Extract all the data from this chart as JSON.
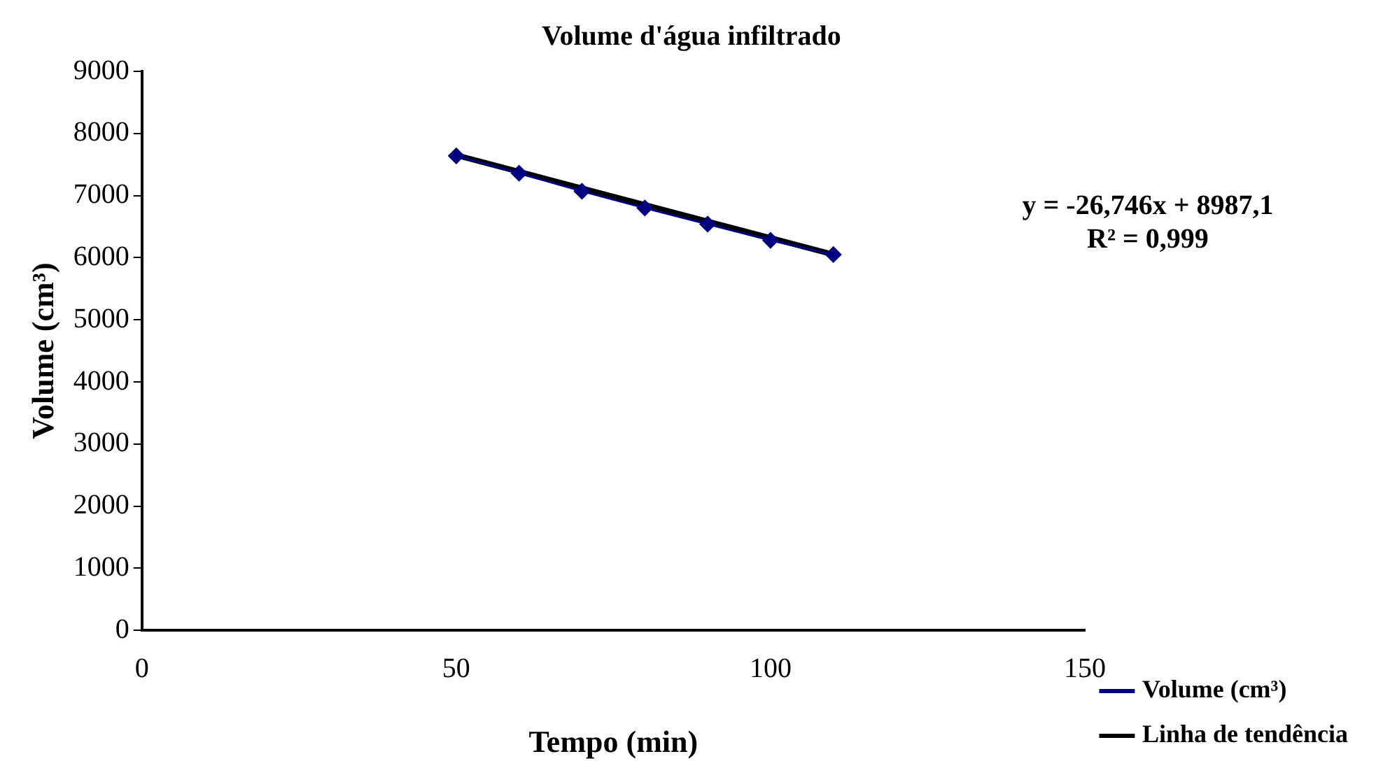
{
  "chart_data": {
    "type": "line",
    "title": "Volume d'água infiltrado",
    "xlabel": "Tempo (min)",
    "ylabel": "Volume (cm³)",
    "xlim": [
      0,
      150
    ],
    "xticks": [
      0,
      50,
      100,
      150
    ],
    "ylim": [
      0,
      9000
    ],
    "yticks": [
      0,
      1000,
      2000,
      3000,
      4000,
      5000,
      6000,
      7000,
      8000,
      9000
    ],
    "grid": false,
    "legend": "bottom right",
    "annotations": [
      "y = -26,746x + 8987,1",
      "R² = 0,999"
    ],
    "series": [
      {
        "name": "Volume (cm³)",
        "color": "#000080",
        "marker": "diamond",
        "x": [
          50,
          60,
          70,
          80,
          90,
          100,
          110
        ],
        "values": [
          7640,
          7360,
          7070,
          6800,
          6540,
          6280,
          6050
        ]
      },
      {
        "name": "Linha de tendência",
        "color": "#000000",
        "marker": "none",
        "x": [
          50,
          110
        ],
        "values": [
          7650,
          6050
        ]
      }
    ]
  }
}
